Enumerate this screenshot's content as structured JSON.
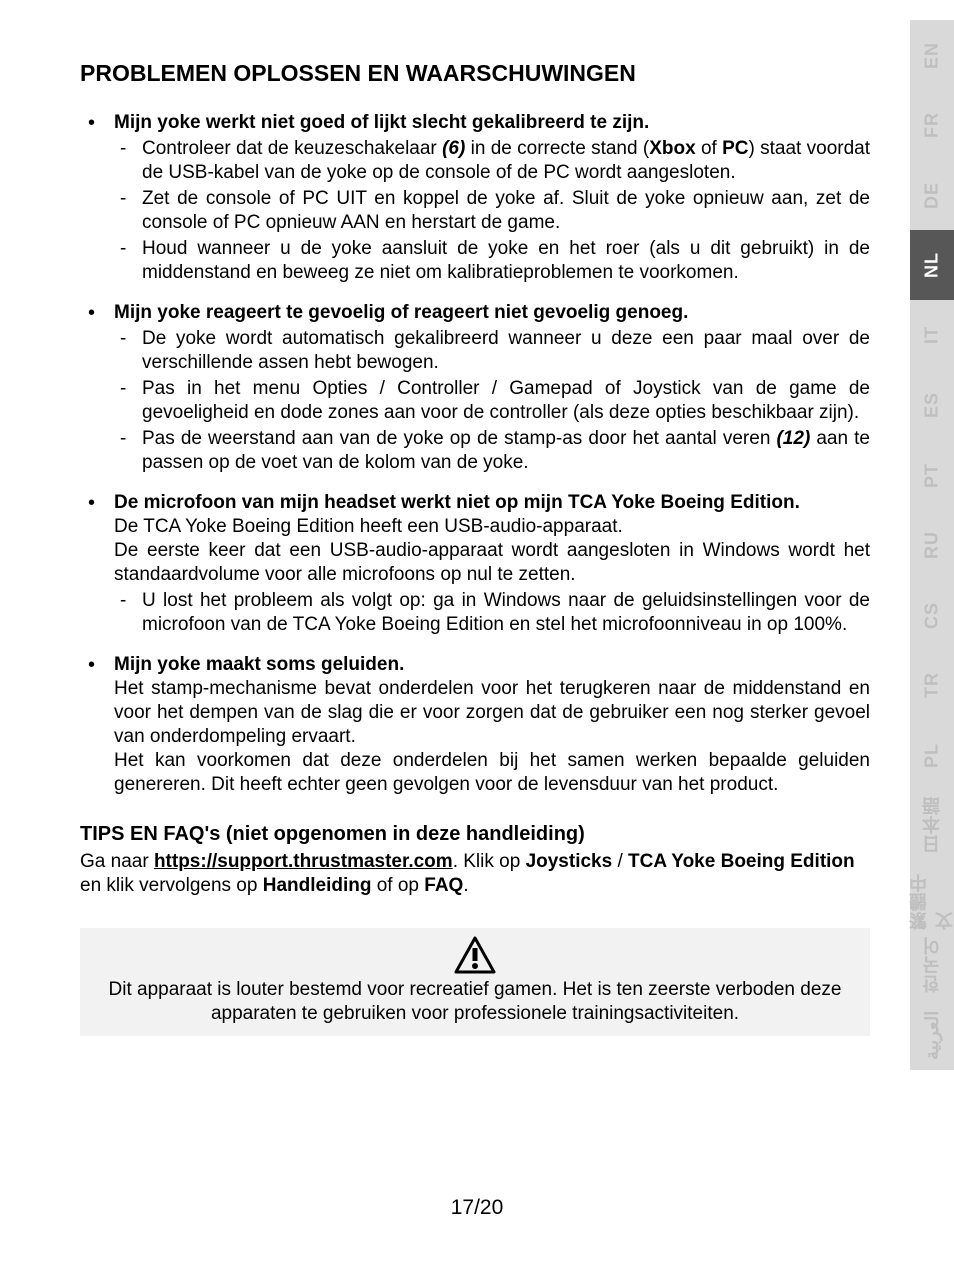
{
  "heading": "PROBLEMEN OPLOSSEN EN WAARSCHUWINGEN",
  "sections": [
    {
      "title": "Mijn yoke werkt niet goed of lijkt slecht gekalibreerd te zijn.",
      "subs": [
        {
          "pre": "Controleer dat de keuzeschakelaar ",
          "ref": "(6)",
          "mid": " in de correcte stand (",
          "b1": "Xbox",
          "mid2": " of ",
          "b2": "PC",
          "post": ") staat voordat de USB-kabel van de yoke op de console of de PC wordt aangesloten."
        },
        {
          "plain": "Zet de console of PC UIT en koppel de yoke af. Sluit de yoke opnieuw aan, zet de console of PC opnieuw AAN en herstart de game."
        },
        {
          "plain": "Houd wanneer u de yoke aansluit de yoke en het roer (als u dit gebruikt) in de middenstand en beweeg ze niet om kalibratieproblemen te voorkomen."
        }
      ]
    },
    {
      "title": "Mijn yoke reageert te gevoelig of reageert niet gevoelig genoeg.",
      "subs": [
        {
          "plain": "De yoke wordt automatisch gekalibreerd wanneer u deze een paar maal over de verschillende assen hebt bewogen."
        },
        {
          "plain": "Pas in het menu Opties / Controller / Gamepad of Joystick van de game de gevoeligheid en dode zones aan voor de controller (als deze opties beschikbaar zijn)."
        },
        {
          "pre": "Pas de weerstand aan van de yoke op de stamp-as door het aantal veren ",
          "ref": "(12)",
          "post": " aan te passen op de voet van de kolom van de yoke."
        }
      ]
    },
    {
      "title": "De microfoon van mijn headset werkt niet op mijn TCA Yoke Boeing Edition.",
      "paras": [
        "De TCA Yoke Boeing Edition heeft een USB-audio-apparaat.",
        "De eerste keer dat een USB-audio-apparaat wordt aangesloten in Windows wordt het standaardvolume voor alle microfoons op nul te zetten."
      ],
      "subs": [
        {
          "plain": "U lost het probleem als volgt op: ga in Windows naar de geluidsinstellingen voor de microfoon van de TCA Yoke Boeing Edition en stel het microfoonniveau in op 100%."
        }
      ]
    },
    {
      "title": "Mijn yoke maakt soms geluiden.",
      "paras": [
        "Het stamp-mechanisme bevat onderdelen voor het terugkeren naar de middenstand en voor het dempen van de slag die er voor zorgen dat de gebruiker een nog sterker gevoel van onderdompeling ervaart.",
        "Het kan voorkomen dat deze onderdelen bij het samen werken bepaalde geluiden genereren. Dit heeft echter geen gevolgen voor de levensduur van het product."
      ]
    }
  ],
  "tips": {
    "heading": "TIPS EN FAQ's (niet opgenomen in deze handleiding)",
    "pre": "Ga naar ",
    "link": "https://support.thrustmaster.com",
    "mid": ". Klik op ",
    "b1": "Joysticks",
    "sep": " / ",
    "b2": "TCA Yoke Boeing Edition",
    "post1": " en klik vervolgens op ",
    "b3": "Handleiding",
    "post2": " of op ",
    "b4": "FAQ",
    "end": "."
  },
  "warning": {
    "line1": "Dit apparaat is louter bestemd voor recreatief gamen. Het is ten zeerste verboden deze",
    "line2": "apparaten te gebruiken voor professionele trainingsactiviteiten."
  },
  "pageNum": "17/20",
  "langs": [
    {
      "code": "EN",
      "active": false
    },
    {
      "code": "FR",
      "active": false
    },
    {
      "code": "DE",
      "active": false
    },
    {
      "code": "NL",
      "active": true
    },
    {
      "code": "IT",
      "active": false
    },
    {
      "code": "ES",
      "active": false
    },
    {
      "code": "PT",
      "active": false
    },
    {
      "code": "RU",
      "active": false
    },
    {
      "code": "CS",
      "active": false
    },
    {
      "code": "TR",
      "active": false
    },
    {
      "code": "PL",
      "active": false
    },
    {
      "code": "日本語",
      "active": false
    },
    {
      "code": "繁體中文",
      "active": false
    },
    {
      "code": "한국어",
      "active": false
    },
    {
      "code": "العربية",
      "active": false
    }
  ],
  "colors": {
    "tabInactiveBg": "#d9d9d9",
    "tabInactiveFg": "#bfbfbf",
    "tabActiveBg": "#575757",
    "tabActiveFg": "#ffffff",
    "warningBg": "#f2f2f2",
    "text": "#000000",
    "bg": "#ffffff"
  }
}
